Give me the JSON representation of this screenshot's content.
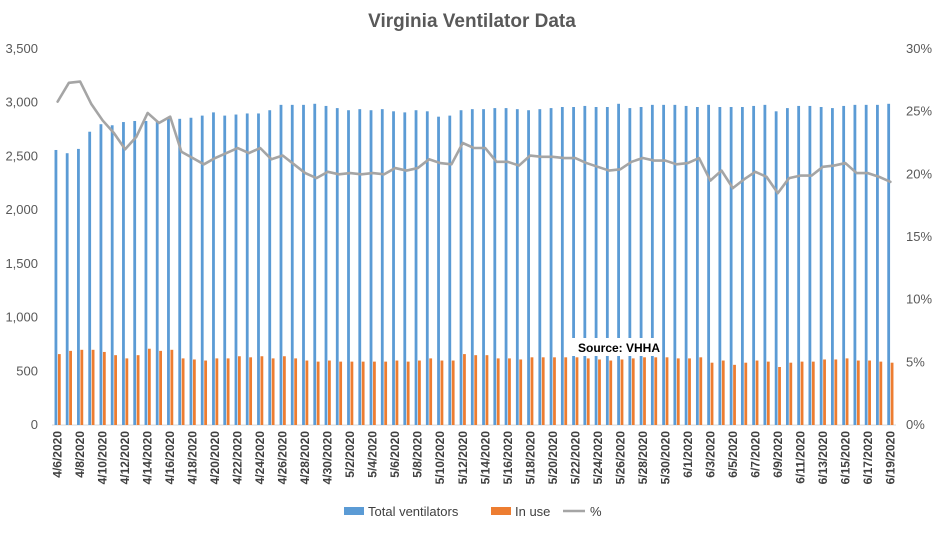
{
  "chart_data": {
    "type": "bar",
    "title": "Virginia Ventilator Data",
    "annotation": "Source: VHHA",
    "left_axis": {
      "ylim": [
        0,
        3500
      ],
      "ticks": [
        "0",
        "500",
        "1,000",
        "1,500",
        "2,000",
        "2,500",
        "3,000",
        "3,500"
      ]
    },
    "right_axis": {
      "ylim": [
        0,
        30
      ],
      "ticks": [
        "0%",
        "5%",
        "10%",
        "15%",
        "20%",
        "25%",
        "30%"
      ]
    },
    "x_tick_labels": [
      "4/6/2020",
      "4/8/2020",
      "4/10/2020",
      "4/12/2020",
      "4/14/2020",
      "4/16/2020",
      "4/18/2020",
      "4/20/2020",
      "4/22/2020",
      "4/24/2020",
      "4/26/2020",
      "4/28/2020",
      "4/30/2020",
      "5/2/2020",
      "5/4/2020",
      "5/6/2020",
      "5/8/2020",
      "5/10/2020",
      "5/12/2020",
      "5/14/2020",
      "5/16/2020",
      "5/18/2020",
      "5/20/2020",
      "5/22/2020",
      "5/24/2020",
      "5/26/2020",
      "5/28/2020",
      "5/30/2020",
      "6/1/2020",
      "6/3/2020",
      "6/5/2020",
      "6/7/2020",
      "6/9/2020",
      "6/11/2020",
      "6/13/2020",
      "6/15/2020",
      "6/17/2020",
      "6/19/2020"
    ],
    "categories": [
      "4/6/2020",
      "4/7/2020",
      "4/8/2020",
      "4/9/2020",
      "4/10/2020",
      "4/11/2020",
      "4/12/2020",
      "4/13/2020",
      "4/14/2020",
      "4/15/2020",
      "4/16/2020",
      "4/17/2020",
      "4/18/2020",
      "4/19/2020",
      "4/20/2020",
      "4/21/2020",
      "4/22/2020",
      "4/23/2020",
      "4/24/2020",
      "4/25/2020",
      "4/26/2020",
      "4/27/2020",
      "4/28/2020",
      "4/29/2020",
      "4/30/2020",
      "5/1/2020",
      "5/2/2020",
      "5/3/2020",
      "5/4/2020",
      "5/5/2020",
      "5/6/2020",
      "5/7/2020",
      "5/8/2020",
      "5/9/2020",
      "5/10/2020",
      "5/11/2020",
      "5/12/2020",
      "5/13/2020",
      "5/14/2020",
      "5/15/2020",
      "5/16/2020",
      "5/17/2020",
      "5/18/2020",
      "5/19/2020",
      "5/20/2020",
      "5/21/2020",
      "5/22/2020",
      "5/23/2020",
      "5/24/2020",
      "5/25/2020",
      "5/26/2020",
      "5/27/2020",
      "5/28/2020",
      "5/29/2020",
      "5/30/2020",
      "5/31/2020",
      "6/1/2020",
      "6/2/2020",
      "6/3/2020",
      "6/4/2020",
      "6/5/2020",
      "6/6/2020",
      "6/7/2020",
      "6/8/2020",
      "6/9/2020",
      "6/10/2020",
      "6/11/2020",
      "6/12/2020",
      "6/13/2020",
      "6/14/2020",
      "6/15/2020",
      "6/16/2020",
      "6/17/2020",
      "6/18/2020",
      "6/19/2020"
    ],
    "series": [
      {
        "name": "Total ventilators",
        "axis": "left",
        "kind": "bar",
        "color": "#5B9BD5",
        "values": [
          2560,
          2530,
          2570,
          2730,
          2800,
          2790,
          2820,
          2830,
          2830,
          2830,
          2860,
          2850,
          2860,
          2880,
          2910,
          2880,
          2890,
          2900,
          2900,
          2930,
          2980,
          2980,
          2980,
          2990,
          2970,
          2950,
          2930,
          2940,
          2930,
          2940,
          2920,
          2910,
          2930,
          2920,
          2870,
          2880,
          2930,
          2940,
          2940,
          2950,
          2950,
          2940,
          2930,
          2940,
          2950,
          2960,
          2960,
          2970,
          2960,
          2960,
          2990,
          2950,
          2960,
          2980,
          2980,
          2980,
          2970,
          2960,
          2980,
          2960,
          2960,
          2960,
          2970,
          2980,
          2920,
          2950,
          2970,
          2970,
          2960,
          2950,
          2970,
          2980,
          2980,
          2980,
          2990
        ]
      },
      {
        "name": "In use",
        "axis": "left",
        "kind": "bar",
        "color": "#ED7D31",
        "values": [
          660,
          690,
          700,
          700,
          680,
          650,
          620,
          650,
          710,
          690,
          700,
          620,
          610,
          600,
          620,
          620,
          640,
          630,
          640,
          620,
          640,
          620,
          600,
          590,
          600,
          590,
          590,
          590,
          590,
          590,
          600,
          590,
          600,
          620,
          600,
          600,
          660,
          650,
          650,
          620,
          620,
          610,
          630,
          630,
          630,
          630,
          630,
          620,
          610,
          600,
          610,
          620,
          630,
          630,
          630,
          620,
          620,
          630,
          580,
          600,
          560,
          580,
          600,
          590,
          540,
          580,
          590,
          590,
          610,
          610,
          620,
          600,
          600,
          590,
          580
        ]
      },
      {
        "name": "%",
        "axis": "right",
        "kind": "line",
        "color": "#A5A5A5",
        "values": [
          25.8,
          27.3,
          27.4,
          25.6,
          24.3,
          23.3,
          22.0,
          23.0,
          24.9,
          24.1,
          24.6,
          21.8,
          21.3,
          20.8,
          21.3,
          21.7,
          22.1,
          21.7,
          22.1,
          21.2,
          21.5,
          20.8,
          20.1,
          19.7,
          20.2,
          20.0,
          20.1,
          20.0,
          20.1,
          20.0,
          20.5,
          20.3,
          20.5,
          21.2,
          20.9,
          20.8,
          22.5,
          22.1,
          22.1,
          21.0,
          21.0,
          20.7,
          21.5,
          21.4,
          21.4,
          21.3,
          21.3,
          20.9,
          20.6,
          20.3,
          20.4,
          21.0,
          21.3,
          21.1,
          21.1,
          20.8,
          20.9,
          21.3,
          19.5,
          20.3,
          18.9,
          19.6,
          20.2,
          19.8,
          18.5,
          19.7,
          19.9,
          19.9,
          20.6,
          20.7,
          20.9,
          20.1,
          20.1,
          19.8,
          19.4
        ]
      }
    ],
    "legend": [
      "Total ventilators",
      "In use",
      "%"
    ],
    "legend_position": "bottom",
    "grid": false
  }
}
